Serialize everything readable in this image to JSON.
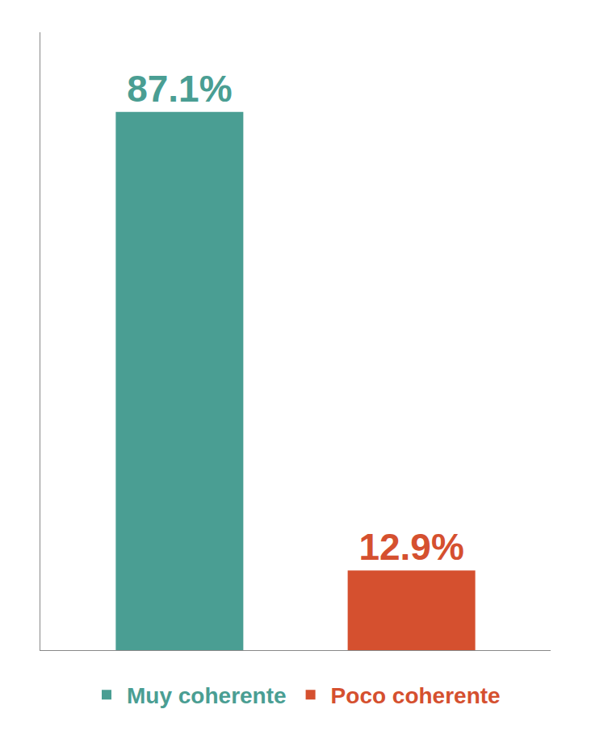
{
  "chart_data": {
    "type": "bar",
    "categories": [
      "Muy coherente",
      "Poco coherente"
    ],
    "values": [
      87.1,
      12.9
    ],
    "value_labels": [
      "87.1%",
      "12.9%"
    ],
    "colors": [
      "#4a9e93",
      "#d5502f"
    ],
    "ylim": [
      0,
      100
    ],
    "data_labels": true,
    "tick_labels": false,
    "grid": false,
    "legend": "bottom"
  }
}
